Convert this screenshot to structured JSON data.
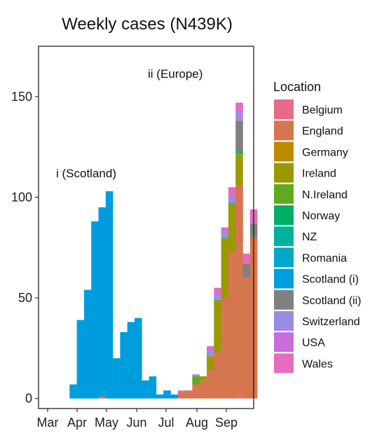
{
  "chart_data": {
    "type": "bar",
    "stacked": true,
    "title": "Weekly cases (N439K)",
    "xlabel": "",
    "ylabel": "",
    "ylim": [
      -5,
      175
    ],
    "y_ticks": [
      0,
      50,
      100,
      150
    ],
    "x_ticks": [
      "Mar",
      "Apr",
      "May",
      "Jun",
      "Jul",
      "Aug",
      "Sep"
    ],
    "week_count": 27,
    "grid": false,
    "legend": {
      "title": "Location",
      "placement": "right",
      "entries": [
        {
          "name": "Belgium",
          "color": "#E76A87"
        },
        {
          "name": "England",
          "color": "#D6764E"
        },
        {
          "name": "Germany",
          "color": "#BF8A00"
        },
        {
          "name": "Ireland",
          "color": "#999900"
        },
        {
          "name": "N.Ireland",
          "color": "#5EAB1F"
        },
        {
          "name": "Norway",
          "color": "#00AE66"
        },
        {
          "name": "NZ",
          "color": "#00B29E"
        },
        {
          "name": "Romania",
          "color": "#00A9C8"
        },
        {
          "name": "Scotland (i)",
          "color": "#009DDE"
        },
        {
          "name": "Scotland (ii)",
          "color": "#808080"
        },
        {
          "name": "Switzerland",
          "color": "#9B8CE3"
        },
        {
          "name": "USA",
          "color": "#C86DD9"
        },
        {
          "name": "Wales",
          "color": "#E46DBE"
        }
      ]
    },
    "annotations": [
      {
        "text": "i (Scotland)"
      },
      {
        "text": "ii (Europe)"
      }
    ],
    "series": [
      {
        "name": "Belgium",
        "values": [
          0,
          0,
          0,
          0,
          0,
          0,
          0,
          0,
          0,
          0,
          0,
          0,
          0,
          0,
          0,
          0,
          0,
          0,
          0,
          0,
          0,
          0,
          0,
          0,
          1,
          0,
          0
        ]
      },
      {
        "name": "England",
        "values": [
          0,
          0,
          0,
          0,
          0,
          1,
          0,
          0,
          0,
          0,
          0,
          0,
          0,
          0,
          0,
          0,
          3,
          4,
          7,
          9,
          14,
          23,
          50,
          73,
          105,
          60,
          80
        ]
      },
      {
        "name": "Germany",
        "values": [
          0,
          0,
          0,
          0,
          0,
          0,
          0,
          0,
          0,
          0,
          0,
          0,
          0,
          0,
          0,
          0,
          0,
          0,
          0,
          0,
          0,
          0,
          0,
          0,
          0,
          0,
          0
        ]
      },
      {
        "name": "Ireland",
        "values": [
          0,
          0,
          0,
          0,
          0,
          0,
          0,
          0,
          0,
          0,
          0,
          0,
          0,
          0,
          0,
          0,
          0,
          0,
          0,
          2,
          7,
          25,
          29,
          23,
          15,
          0,
          0
        ]
      },
      {
        "name": "N.Ireland",
        "values": [
          0,
          0,
          0,
          0,
          0,
          0,
          0,
          0,
          0,
          0,
          0,
          0,
          0,
          0,
          0,
          0,
          0,
          0,
          4,
          0,
          0,
          1,
          1,
          1,
          1,
          0,
          0
        ]
      },
      {
        "name": "Norway",
        "values": [
          0,
          0,
          0,
          0,
          0,
          0,
          0,
          0,
          0,
          0,
          0,
          0,
          0,
          0,
          0,
          0,
          0,
          0,
          0,
          0,
          0,
          0,
          0,
          0,
          1,
          0,
          0
        ]
      },
      {
        "name": "NZ",
        "values": [
          0,
          0,
          0,
          0,
          0,
          0,
          0,
          0,
          0,
          0,
          0,
          0,
          0,
          0,
          0,
          0,
          0,
          0,
          0,
          0,
          0,
          0,
          0,
          0,
          0,
          0,
          0
        ]
      },
      {
        "name": "Romania",
        "values": [
          0,
          0,
          0,
          0,
          0,
          0,
          0,
          0,
          0,
          0,
          0,
          0,
          0,
          0,
          0,
          0,
          0,
          0,
          0,
          0,
          0,
          0,
          0,
          0,
          0,
          0,
          0
        ]
      },
      {
        "name": "Scotland (i)",
        "values": [
          0,
          7,
          39,
          54,
          88,
          94,
          103,
          20,
          33,
          38,
          40,
          9,
          11,
          2,
          4,
          2,
          0,
          0,
          0,
          0,
          0,
          0,
          0,
          0,
          0,
          0,
          0
        ]
      },
      {
        "name": "Scotland (ii)",
        "values": [
          0,
          0,
          0,
          0,
          0,
          0,
          0,
          0,
          0,
          0,
          0,
          0,
          0,
          0,
          0,
          0,
          0,
          0,
          0,
          0,
          0,
          0,
          0,
          0,
          15,
          7,
          7
        ]
      },
      {
        "name": "Switzerland",
        "values": [
          0,
          0,
          0,
          0,
          0,
          0,
          0,
          0,
          0,
          0,
          0,
          0,
          0,
          0,
          0,
          0,
          0,
          0,
          1,
          0,
          3,
          2,
          3,
          3,
          4,
          0,
          0
        ]
      },
      {
        "name": "USA",
        "values": [
          0,
          0,
          0,
          0,
          0,
          0,
          0,
          0,
          0,
          0,
          0,
          0,
          0,
          0,
          0,
          0,
          0,
          0,
          0,
          0,
          1,
          1,
          1,
          1,
          1,
          0,
          0
        ]
      },
      {
        "name": "Wales",
        "values": [
          0,
          0,
          0,
          0,
          0,
          0,
          0,
          0,
          0,
          0,
          0,
          0,
          0,
          0,
          0,
          0,
          1,
          0,
          0,
          0,
          1,
          3,
          1,
          4,
          4,
          5,
          7
        ]
      }
    ]
  }
}
